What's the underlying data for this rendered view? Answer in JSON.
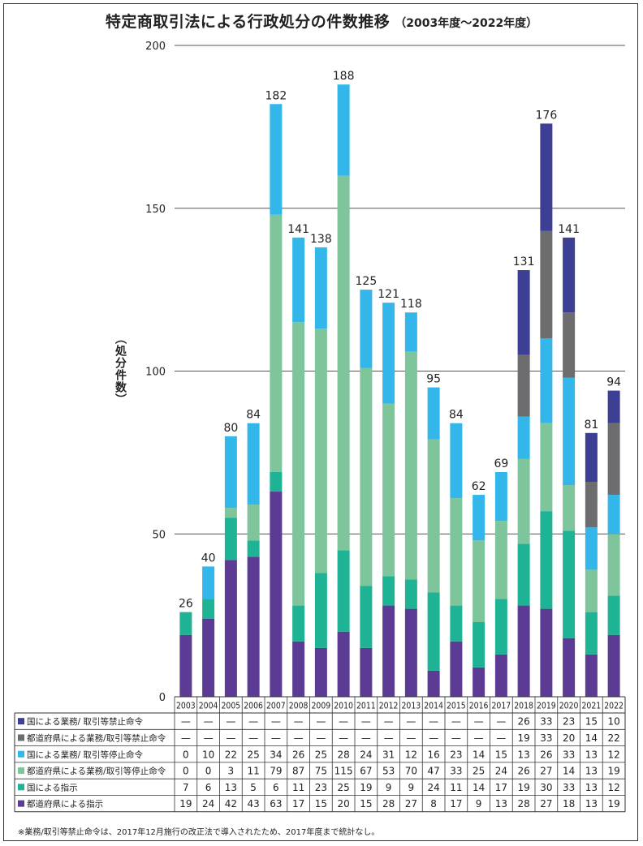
{
  "title": {
    "main": "特定商取引法による行政処分の件数推移",
    "sub": "（2003年度〜2022年度）"
  },
  "colors": {
    "gov_ban": "#3d3f94",
    "pref_ban": "#6d6d6f",
    "gov_suspend": "#33b6e9",
    "pref_suspend": "#7ec59c",
    "gov_instruct": "#1eb394",
    "pref_instruct": "#5b3b94"
  },
  "footnote": "※業務/取引等禁止命令は、2017年12月施行の改正法で導入されたため、2017年度まで統計なし。",
  "chart_data": {
    "type": "bar",
    "stacked": true,
    "ylabel": "（処分件数）",
    "ylim": [
      0,
      200
    ],
    "yticks": [
      0,
      50,
      100,
      150,
      200
    ],
    "grid": true,
    "categories": [
      "2003",
      "2004",
      "2005",
      "2006",
      "2007",
      "2008",
      "2009",
      "2010",
      "2011",
      "2012",
      "2013",
      "2014",
      "2015",
      "2016",
      "2017",
      "2018",
      "2019",
      "2020",
      "2021",
      "2022"
    ],
    "totals": [
      26,
      40,
      80,
      84,
      182,
      141,
      138,
      188,
      125,
      121,
      118,
      95,
      84,
      62,
      69,
      131,
      176,
      141,
      81,
      94
    ],
    "series": [
      {
        "key": "gov_ban",
        "name": "国による業務/ 取引等禁止命令",
        "values": [
          null,
          null,
          null,
          null,
          null,
          null,
          null,
          null,
          null,
          null,
          null,
          null,
          null,
          null,
          null,
          26,
          33,
          23,
          15,
          10
        ]
      },
      {
        "key": "pref_ban",
        "name": "都道府県による業務/取引等禁止命令",
        "values": [
          null,
          null,
          null,
          null,
          null,
          null,
          null,
          null,
          null,
          null,
          null,
          null,
          null,
          null,
          null,
          19,
          33,
          20,
          14,
          22
        ]
      },
      {
        "key": "gov_suspend",
        "name": "国による業務/ 取引等停止命令",
        "values": [
          0,
          10,
          22,
          25,
          34,
          26,
          25,
          28,
          24,
          31,
          12,
          16,
          23,
          14,
          15,
          13,
          26,
          33,
          13,
          12
        ]
      },
      {
        "key": "pref_suspend",
        "name": "都道府県による業務/取引等停止命令",
        "values": [
          0,
          0,
          3,
          11,
          79,
          87,
          75,
          115,
          67,
          53,
          70,
          47,
          33,
          25,
          24,
          26,
          27,
          14,
          13,
          19
        ]
      },
      {
        "key": "gov_instruct",
        "name": "国による指示",
        "values": [
          7,
          6,
          13,
          5,
          6,
          11,
          23,
          25,
          19,
          9,
          9,
          24,
          11,
          14,
          17,
          19,
          30,
          33,
          13,
          12
        ]
      },
      {
        "key": "pref_instruct",
        "name": "都道府県による指示",
        "values": [
          19,
          24,
          42,
          43,
          63,
          17,
          15,
          20,
          15,
          28,
          27,
          8,
          17,
          9,
          13,
          28,
          27,
          18,
          13,
          19
        ]
      }
    ],
    "missing_symbol": "—"
  }
}
